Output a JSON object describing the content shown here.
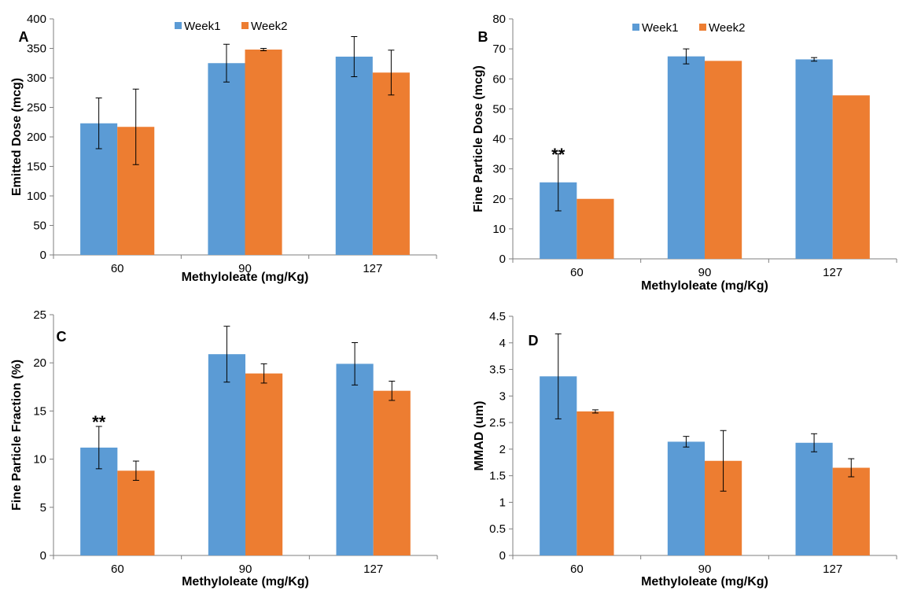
{
  "colors": {
    "week1": "#5b9bd5",
    "week2": "#ed7d31",
    "axis": "#7f7f7f",
    "errorbar": "#000000"
  },
  "chart_data": [
    {
      "type": "bar",
      "panel": "A",
      "categories": [
        "60",
        "90",
        "127"
      ],
      "series": [
        {
          "name": "Week1",
          "values": [
            223,
            325,
            336
          ],
          "errors": [
            43,
            32,
            34
          ]
        },
        {
          "name": "Week2",
          "values": [
            217,
            348,
            309
          ],
          "errors": [
            64,
            2,
            38
          ]
        }
      ],
      "xlabel": "Methyloleate  (mg/Kg)",
      "ylabel": "Emitted Dose (mcg)",
      "ylim": [
        0,
        400
      ],
      "yticks": [
        0,
        50,
        100,
        150,
        200,
        250,
        300,
        350,
        400
      ],
      "annotations": [],
      "legend": "top"
    },
    {
      "type": "bar",
      "panel": "B",
      "categories": [
        "60",
        "90",
        "127"
      ],
      "series": [
        {
          "name": "Week1",
          "values": [
            25.5,
            67.5,
            66.5
          ],
          "errors": [
            9.5,
            2.5,
            0.6
          ]
        },
        {
          "name": "Week2",
          "values": [
            20,
            66,
            54.5
          ],
          "errors": [
            0,
            0,
            0
          ]
        }
      ],
      "xlabel": "Methyloleate  (mg/Kg)",
      "ylabel": "Fine Particle Dose (mcg)",
      "ylim": [
        0,
        80
      ],
      "yticks": [
        0,
        10,
        20,
        30,
        40,
        50,
        60,
        70,
        80
      ],
      "annotations": [
        {
          "text": "**",
          "category": "60",
          "value": 36
        }
      ],
      "legend": "top"
    },
    {
      "type": "bar",
      "panel": "C",
      "categories": [
        "60",
        "90",
        "127"
      ],
      "series": [
        {
          "name": "Week1",
          "values": [
            11.2,
            20.9,
            19.9
          ],
          "errors": [
            2.2,
            2.9,
            2.2
          ]
        },
        {
          "name": "Week2",
          "values": [
            8.8,
            18.9,
            17.1
          ],
          "errors": [
            1.0,
            1.0,
            1.0
          ]
        }
      ],
      "xlabel": "Methyloleate  (mg/Kg)",
      "ylabel": "Fine Particle Fraction  (%)",
      "ylim": [
        0,
        25
      ],
      "yticks": [
        0,
        5,
        10,
        15,
        20,
        25
      ],
      "annotations": [
        {
          "text": "**",
          "category": "60",
          "value": 14.2
        }
      ],
      "legend": "none"
    },
    {
      "type": "bar",
      "panel": "D",
      "categories": [
        "60",
        "90",
        "127"
      ],
      "series": [
        {
          "name": "Week1",
          "values": [
            3.37,
            2.14,
            2.12
          ],
          "errors": [
            0.8,
            0.1,
            0.17
          ]
        },
        {
          "name": "Week2",
          "values": [
            2.71,
            1.78,
            1.65
          ],
          "errors": [
            0.03,
            0.57,
            0.17
          ]
        }
      ],
      "xlabel": "Methyloleate  (mg/Kg)",
      "ylabel": "MMAD  (um)",
      "ylim": [
        0,
        4.5
      ],
      "yticks": [
        0,
        0.5,
        1,
        1.5,
        2,
        2.5,
        3,
        3.5,
        4,
        4.5
      ],
      "annotations": [],
      "legend": "none"
    }
  ]
}
